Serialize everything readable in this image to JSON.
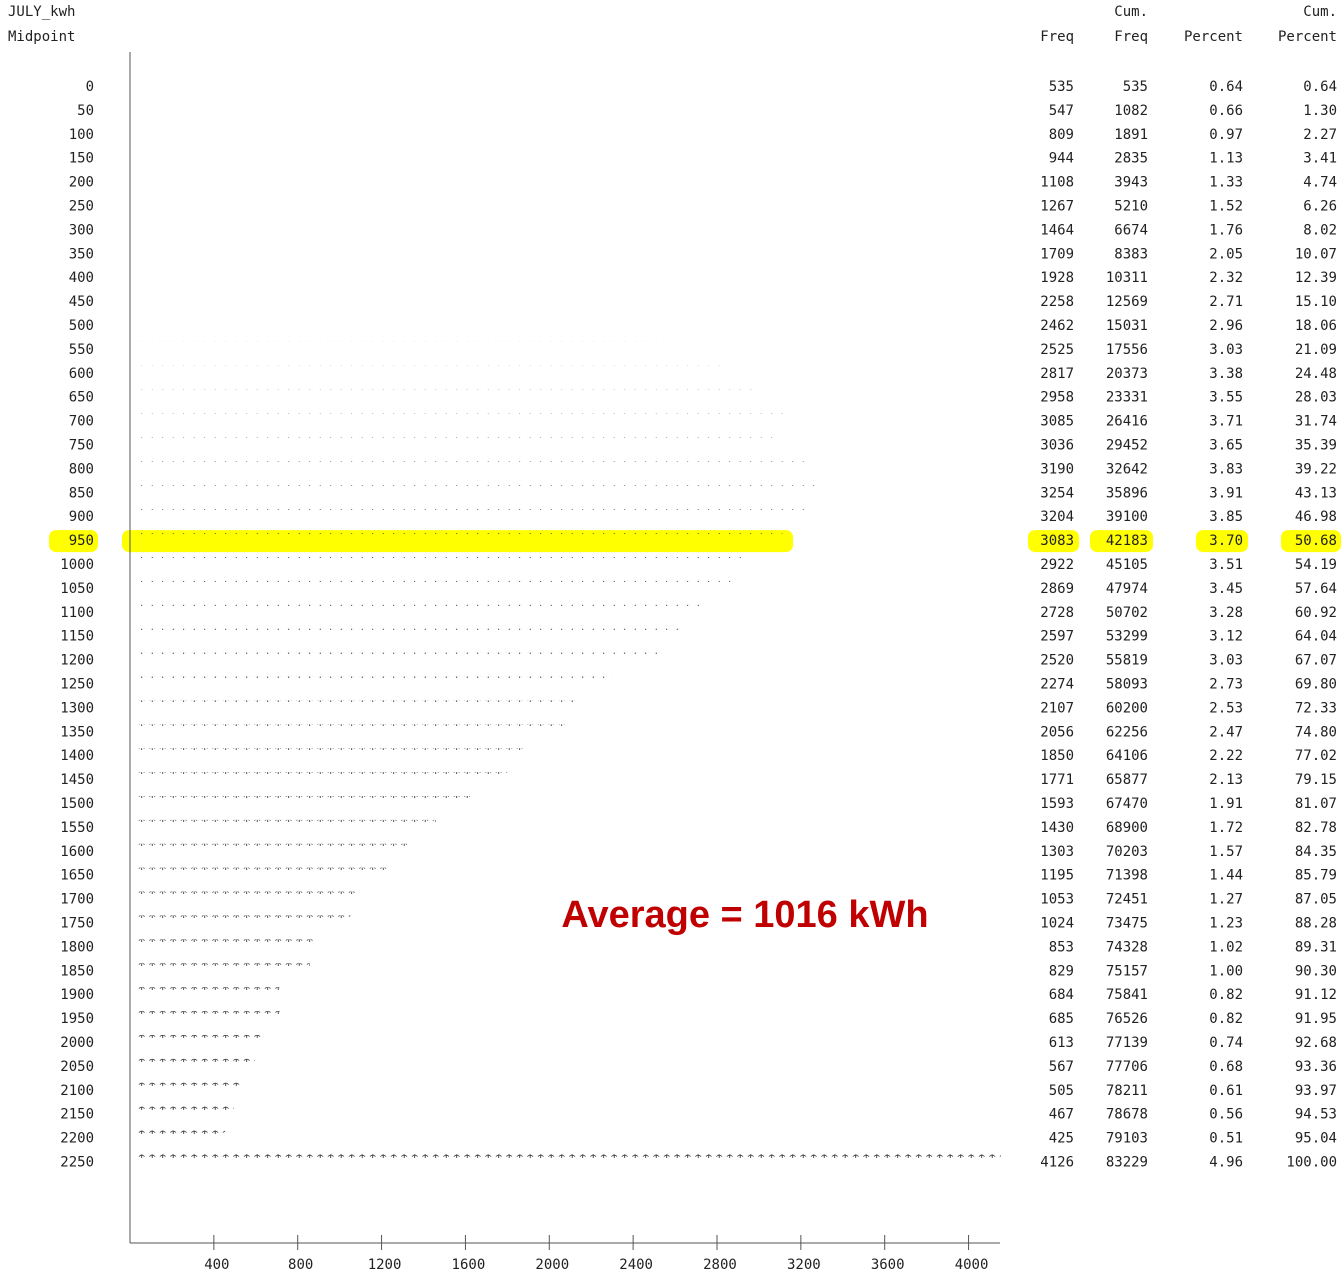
{
  "chart_data": {
    "type": "bar",
    "orientation": "horizontal",
    "title": "JULY_kwh",
    "y_label": "Midpoint",
    "freq_header": "Freq",
    "cum_freq_header": [
      "Cum.",
      "Freq"
    ],
    "percent_header": "Percent",
    "cum_percent_header": [
      "Cum.",
      "Percent"
    ],
    "categories": [
      0,
      50,
      100,
      150,
      200,
      250,
      300,
      350,
      400,
      450,
      500,
      550,
      600,
      650,
      700,
      750,
      800,
      850,
      900,
      950,
      1000,
      1050,
      1100,
      1150,
      1200,
      1250,
      1300,
      1350,
      1400,
      1450,
      1500,
      1550,
      1600,
      1650,
      1700,
      1750,
      1800,
      1850,
      1900,
      1950,
      2000,
      2050,
      2100,
      2150,
      2200,
      2250
    ],
    "values": [
      535,
      547,
      809,
      944,
      1108,
      1267,
      1464,
      1709,
      1928,
      2258,
      2462,
      2525,
      2817,
      2958,
      3085,
      3036,
      3190,
      3254,
      3204,
      3083,
      2922,
      2869,
      2728,
      2597,
      2520,
      2274,
      2107,
      2056,
      1850,
      1771,
      1593,
      1430,
      1303,
      1195,
      1053,
      1024,
      853,
      829,
      684,
      685,
      613,
      567,
      505,
      467,
      425,
      4126
    ],
    "cum_freq": [
      535,
      1082,
      1891,
      2835,
      3943,
      5210,
      6674,
      8383,
      10311,
      12569,
      15031,
      17556,
      20373,
      23331,
      26416,
      29452,
      32642,
      35896,
      39100,
      42183,
      45105,
      47974,
      50702,
      53299,
      55819,
      58093,
      60200,
      62256,
      64106,
      65877,
      67470,
      68900,
      70203,
      71398,
      72451,
      73475,
      74328,
      75157,
      75841,
      76526,
      77139,
      77706,
      78211,
      78678,
      79103,
      83229
    ],
    "percent": [
      "0.64",
      "0.66",
      "0.97",
      "1.13",
      "1.33",
      "1.52",
      "1.76",
      "2.05",
      "2.32",
      "2.71",
      "2.96",
      "3.03",
      "3.38",
      "3.55",
      "3.71",
      "3.65",
      "3.83",
      "3.91",
      "3.85",
      "3.70",
      "3.51",
      "3.45",
      "3.28",
      "3.12",
      "3.03",
      "2.73",
      "2.53",
      "2.47",
      "2.22",
      "2.13",
      "1.91",
      "1.72",
      "1.57",
      "1.44",
      "1.27",
      "1.23",
      "1.02",
      "1.00",
      "0.82",
      "0.82",
      "0.74",
      "0.68",
      "0.61",
      "0.56",
      "0.51",
      "4.96"
    ],
    "cum_percent": [
      "0.64",
      "1.30",
      "2.27",
      "3.41",
      "4.74",
      "6.26",
      "8.02",
      "10.07",
      "12.39",
      "15.10",
      "18.06",
      "21.09",
      "24.48",
      "28.03",
      "31.74",
      "35.39",
      "39.22",
      "43.13",
      "46.98",
      "50.68",
      "54.19",
      "57.64",
      "60.92",
      "64.04",
      "67.07",
      "69.80",
      "72.33",
      "74.80",
      "77.02",
      "79.15",
      "81.07",
      "82.78",
      "84.35",
      "85.79",
      "87.05",
      "88.28",
      "89.31",
      "90.30",
      "91.12",
      "91.95",
      "92.68",
      "93.36",
      "93.97",
      "94.53",
      "95.04",
      "100.00"
    ],
    "xlim": [
      0,
      4150
    ],
    "xticks": [
      400,
      800,
      1200,
      1600,
      2000,
      2400,
      2800,
      3200,
      3600,
      4000
    ],
    "highlight": 950,
    "highlight_color": "#ffff00",
    "annotation": "Average = 1016 kWh"
  }
}
